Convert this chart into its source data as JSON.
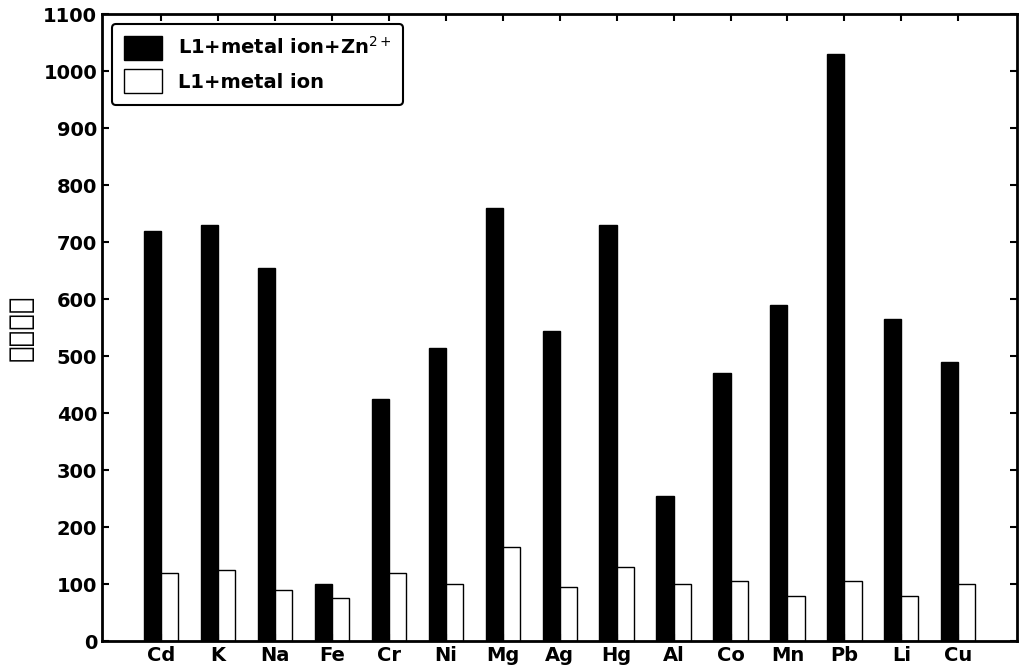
{
  "categories": [
    "Cd",
    "K",
    "Na",
    "Fe",
    "Cr",
    "Ni",
    "Mg",
    "Ag",
    "Hg",
    "Al",
    "Co",
    "Mn",
    "Pb",
    "Li",
    "Cu"
  ],
  "black_bars": [
    720,
    730,
    655,
    100,
    425,
    515,
    760,
    545,
    730,
    255,
    470,
    590,
    1030,
    565,
    490
  ],
  "white_bars": [
    120,
    125,
    90,
    75,
    120,
    100,
    165,
    95,
    130,
    100,
    105,
    80,
    105,
    80,
    100
  ],
  "legend_black": "L1+metal ion+Zn$^{2+}$",
  "legend_white": "L1+metal ion",
  "ylabel": "荧光强度",
  "ylim": [
    0,
    1100
  ],
  "yticks": [
    0,
    100,
    200,
    300,
    400,
    500,
    600,
    700,
    800,
    900,
    1000,
    1100
  ],
  "bar_width": 0.3,
  "black_color": "#000000",
  "white_color": "#ffffff",
  "edge_color": "#000000",
  "background_color": "#ffffff",
  "axis_fontsize": 20,
  "tick_fontsize": 14,
  "legend_fontsize": 14
}
